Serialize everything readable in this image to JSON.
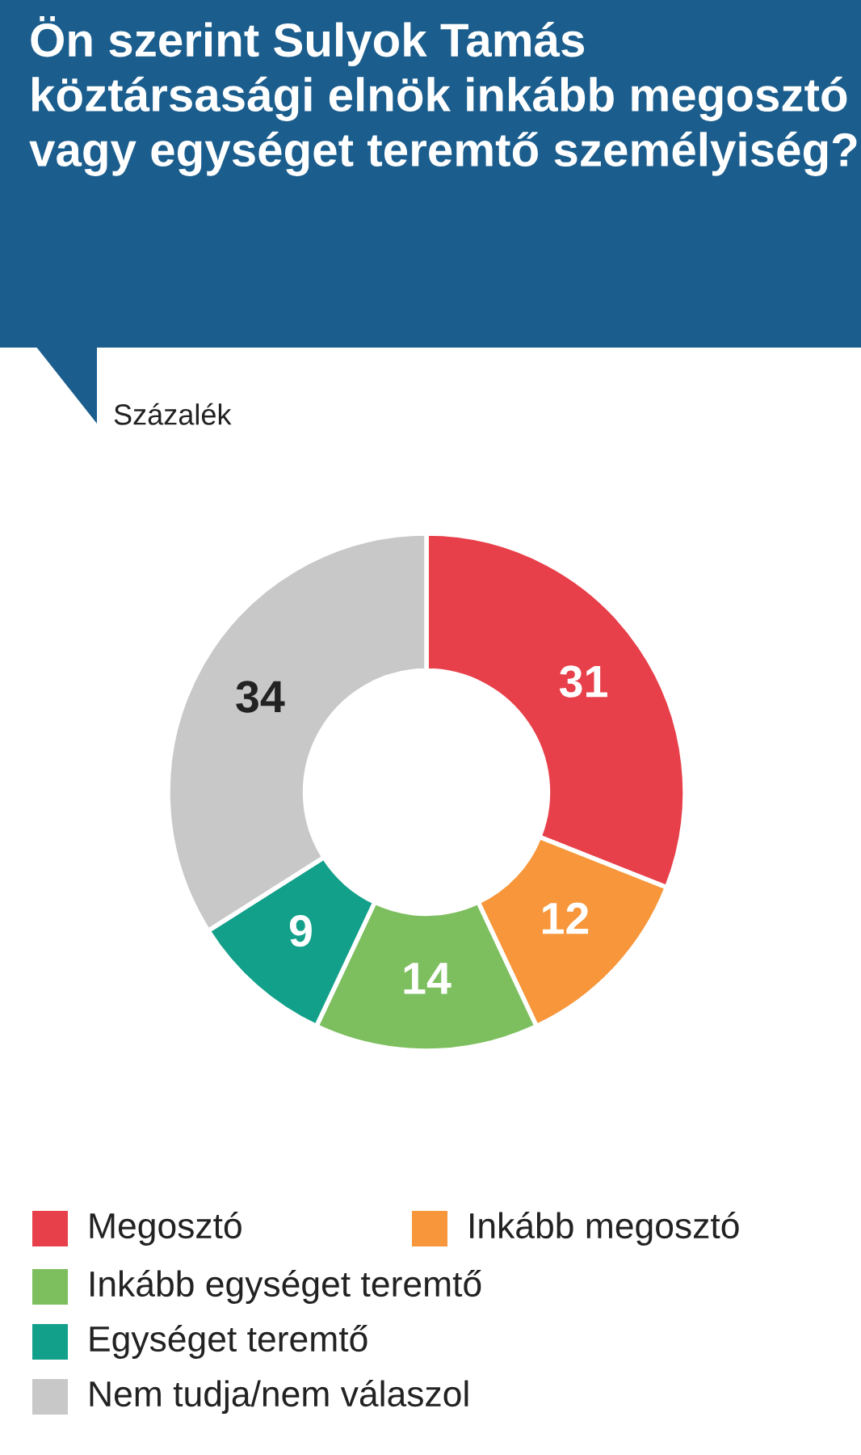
{
  "chart_data": {
    "type": "donut",
    "title": "Ön szerint Sulyok Tamás köztársasági elnök inkább megosztó vagy egységet teremtő személyiség?",
    "subtitle": "Százalék",
    "categories": [
      "Megosztó",
      "Inkább megosztó",
      "Inkább egységet teremtő",
      "Egységet teremtő",
      "Nem tudja/nem válaszol"
    ],
    "values": [
      31,
      12,
      14,
      9,
      34
    ],
    "colors": [
      "#e8404a",
      "#f7963a",
      "#7dbf5e",
      "#13a08a",
      "#c8c8c8"
    ],
    "data_labels": true,
    "legend": "bottom"
  }
}
